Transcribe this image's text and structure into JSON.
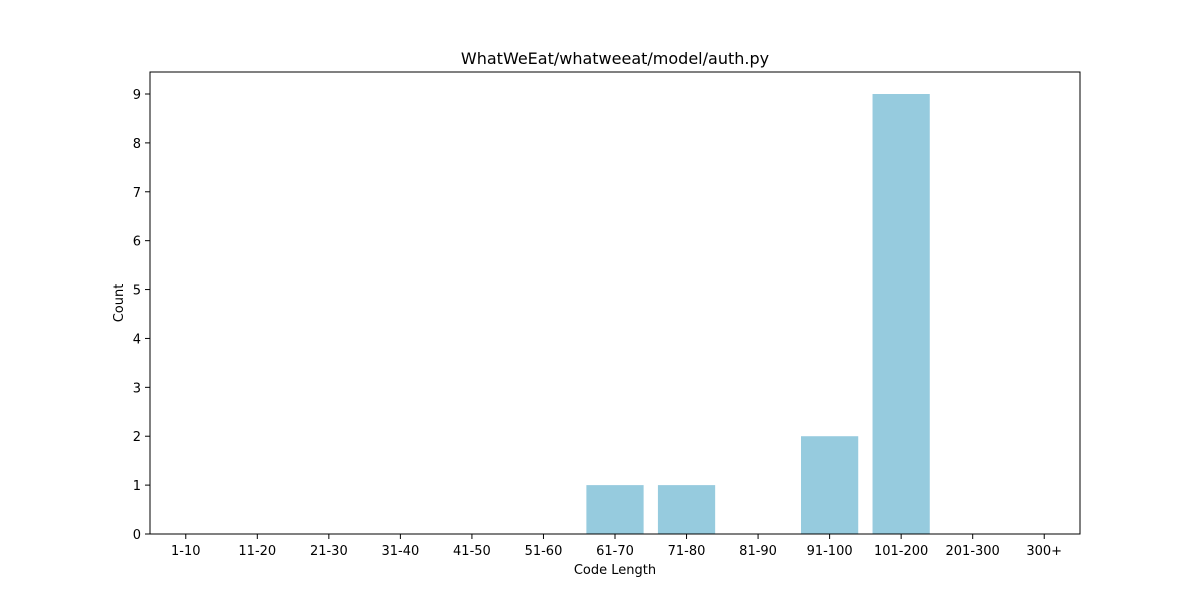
{
  "chart_data": {
    "type": "bar",
    "title": "WhatWeEat/whatweeat/model/auth.py",
    "xlabel": "Code Length",
    "ylabel": "Count",
    "categories": [
      "1-10",
      "11-20",
      "21-30",
      "31-40",
      "41-50",
      "51-60",
      "61-70",
      "71-80",
      "81-90",
      "91-100",
      "101-200",
      "201-300",
      "300+"
    ],
    "values": [
      0,
      0,
      0,
      0,
      0,
      0,
      1,
      1,
      0,
      2,
      9,
      0,
      0
    ],
    "yticks": [
      0,
      1,
      2,
      3,
      4,
      5,
      6,
      7,
      8,
      9
    ],
    "ylim": [
      0,
      9.45
    ],
    "grid": false,
    "bar_color": "#96cbde"
  }
}
